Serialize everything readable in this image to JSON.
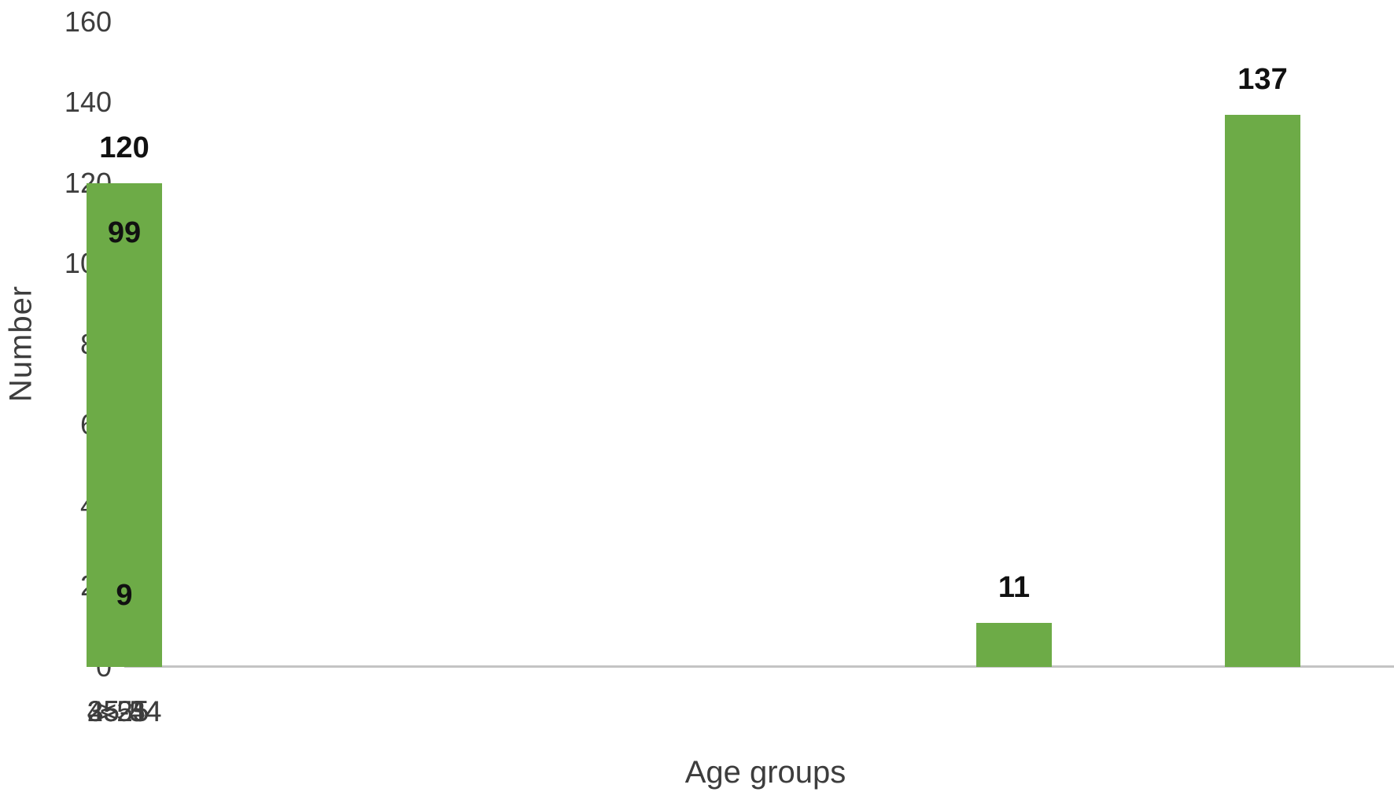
{
  "chart_data": {
    "type": "bar",
    "title": "",
    "categories": [
      "<25",
      "25-34",
      "35-44",
      "45-54",
      ">55"
    ],
    "values": [
      11,
      137,
      120,
      99,
      9
    ],
    "xlabel": "Age groups",
    "ylabel": "Number",
    "ylim": [
      0,
      160
    ],
    "ytick_interval": 20,
    "yticks_top_down": [
      "160",
      "140",
      "120",
      "100",
      "80",
      "60",
      "40",
      "20",
      "0"
    ],
    "grid": false,
    "legend": false,
    "bar_color": "#6dab47",
    "axis_line_color": "#c4c4c4",
    "tick_label_color": "#3d3d3d",
    "data_label_color": "#111111"
  }
}
